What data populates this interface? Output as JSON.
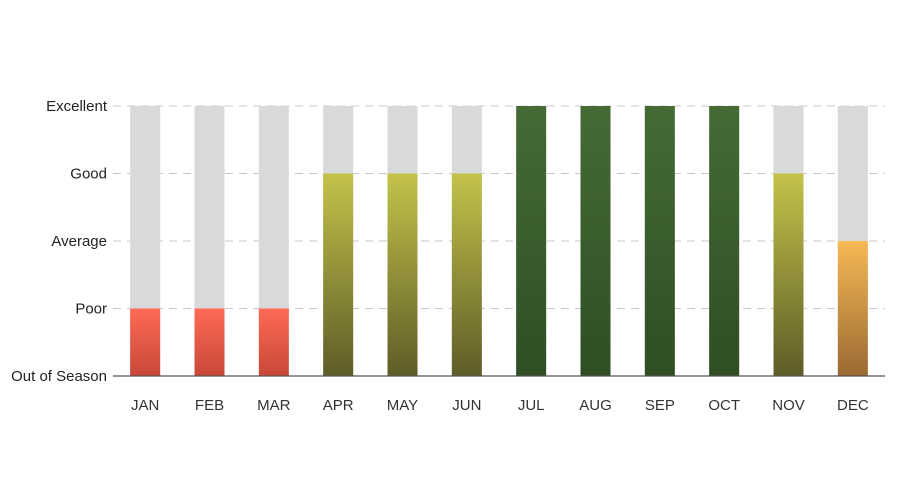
{
  "chart_data": {
    "type": "bar",
    "categories": [
      "JAN",
      "FEB",
      "MAR",
      "APR",
      "MAY",
      "JUN",
      "JUL",
      "AUG",
      "SEP",
      "OCT",
      "NOV",
      "DEC"
    ],
    "values": [
      1,
      1,
      1,
      3,
      3,
      3,
      4,
      4,
      4,
      4,
      3,
      2
    ],
    "y_levels": [
      "Out of Season",
      "Poor",
      "Average",
      "Good",
      "Excellent"
    ],
    "ylim": [
      0,
      4
    ],
    "grid": true,
    "background_bar_color": "#d9d9d9",
    "level_colors": {
      "1": {
        "top": "#ff6a55",
        "bottom": "#c84838"
      },
      "2": {
        "top": "#f7b955",
        "bottom": "#9a6a33"
      },
      "3": {
        "top": "#c3c34a",
        "bottom": "#5e5c27"
      },
      "4": {
        "top": "#456b35",
        "bottom": "#2f4e24"
      }
    }
  }
}
